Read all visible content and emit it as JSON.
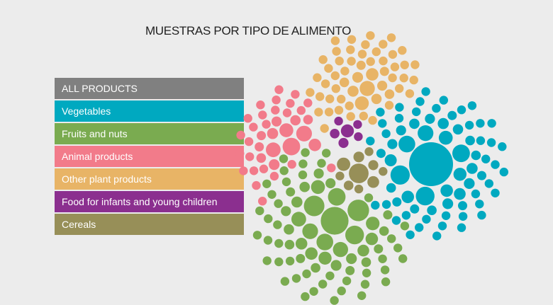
{
  "chart_data": {
    "type": "bubble",
    "title": "MUESTRAS POR TIPO DE ALIMENTO",
    "legend_placement": "left",
    "filters": [
      {
        "label": "ALL PRODUCTS",
        "color": "#808080"
      },
      {
        "label": "Vegetables",
        "color": "#00a9c0"
      },
      {
        "label": "Fruits and nuts",
        "color": "#7aab50"
      },
      {
        "label": "Animal products",
        "color": "#f27b8a"
      },
      {
        "label": "Other plant products",
        "color": "#e8b466"
      },
      {
        "label": "Food for infants and young children",
        "color": "#8b2f8f"
      },
      {
        "label": "Cereals",
        "color": "#978f58"
      }
    ],
    "groups": [
      {
        "category": "Food for infants and young children",
        "color": "#8b2f8f",
        "values": [
          2.2,
          1.3,
          1.2,
          1,
          1,
          1
        ]
      },
      {
        "category": "Cereals",
        "color": "#978f58",
        "values": [
          5,
          2.3,
          1.8,
          1.5,
          1.3,
          1.2,
          1,
          1,
          1,
          1
        ]
      },
      {
        "category": "Vegetables",
        "color": "#00a9c0",
        "values": [
          25,
          4.8,
          4.5,
          4,
          3.6,
          3.2,
          2.5,
          2.2,
          2,
          2,
          1.9,
          1.8,
          1.6,
          1.6,
          1.5,
          1.5,
          1.4,
          1.4,
          1.3,
          1.3,
          1.3,
          1.2,
          1.2,
          1.2,
          1.2,
          1.1,
          1.1,
          1.1,
          1.1,
          1.1,
          1.1,
          1,
          1,
          1,
          1,
          1,
          1,
          1,
          1,
          1,
          1,
          1,
          1,
          1,
          1,
          1,
          1,
          1,
          1,
          1,
          1,
          1,
          1,
          1,
          1,
          1,
          1,
          1,
          1,
          1,
          1,
          1,
          1,
          1,
          1,
          1,
          1,
          1,
          1,
          1
        ]
      },
      {
        "category": "Fruits and nuts",
        "color": "#7aab50",
        "values": [
          10,
          6,
          5.5,
          4.5,
          4,
          3.6,
          3.2,
          3,
          2.8,
          2.5,
          2.4,
          2.2,
          2,
          2,
          1.8,
          1.8,
          1.6,
          1.5,
          1.5,
          1.4,
          1.4,
          1.3,
          1.3,
          1.3,
          1.2,
          1.2,
          1.2,
          1.2,
          1.1,
          1.1,
          1.1,
          1.1,
          1.1,
          1,
          1,
          1,
          1,
          1,
          1,
          1,
          1,
          1,
          1,
          1,
          1,
          1,
          1,
          1,
          1,
          1,
          1,
          1,
          1,
          1,
          1,
          1,
          1,
          1,
          1,
          1,
          1,
          1,
          1,
          1,
          1,
          1,
          1,
          1,
          1,
          1,
          1,
          1,
          1,
          1
        ]
      },
      {
        "category": "Other plant products",
        "color": "#e8b466",
        "values": [
          3,
          2.5,
          2,
          1.6,
          1.5,
          1.4,
          1.3,
          1.2,
          1.2,
          1.1,
          1.1,
          1,
          1,
          1,
          1,
          1,
          1,
          1,
          1,
          1,
          1,
          1,
          1,
          1,
          1,
          1,
          1,
          1,
          1,
          1,
          1,
          1,
          1,
          1,
          1,
          1,
          1,
          1,
          1,
          1,
          1,
          1,
          1,
          1,
          1,
          1,
          1,
          1,
          1,
          1,
          1,
          1,
          1,
          1,
          1
        ]
      },
      {
        "category": "Animal products",
        "color": "#f27b8a",
        "values": [
          4,
          3.2,
          2.8,
          2.5,
          2,
          1.6,
          1.5,
          1.4,
          1.3,
          1.2,
          1.2,
          1.1,
          1.1,
          1,
          1,
          1,
          1,
          1,
          1,
          1,
          1,
          1,
          1,
          1,
          1,
          1,
          1,
          1,
          1,
          1,
          1,
          1,
          1,
          1,
          1,
          1,
          1,
          1
        ]
      }
    ]
  }
}
